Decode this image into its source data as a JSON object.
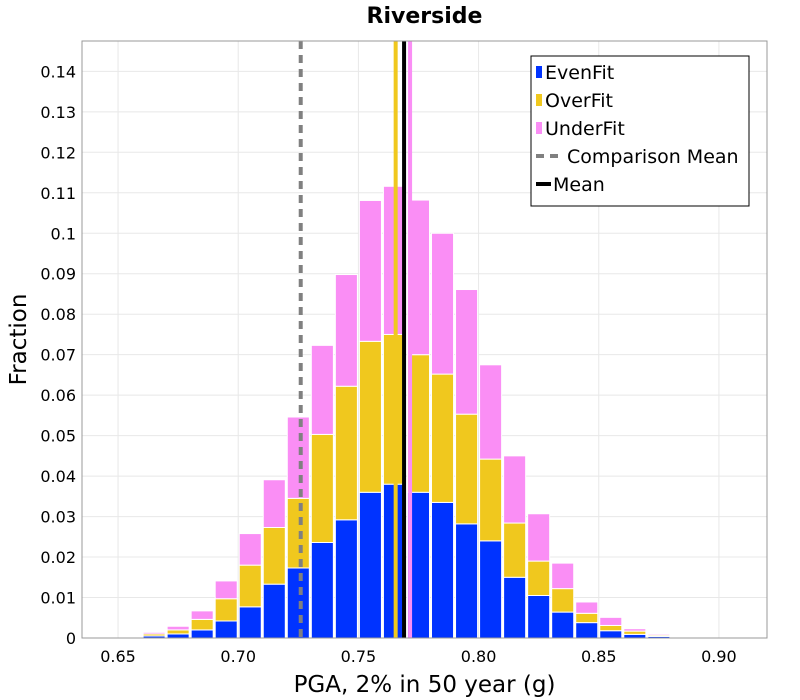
{
  "chart_data": {
    "type": "bar",
    "stacked": true,
    "title": "Riverside",
    "xlabel": "PGA, 2% in 50 year (g)",
    "ylabel": "Fraction",
    "xlim": [
      0.635,
      0.92
    ],
    "ylim": [
      0,
      0.1475
    ],
    "xticks": [
      0.65,
      0.7,
      0.75,
      0.8,
      0.85,
      0.9
    ],
    "xtick_labels": [
      "0.65",
      "0.70",
      "0.75",
      "0.80",
      "0.85",
      "0.90"
    ],
    "yticks": [
      0,
      0.01,
      0.02,
      0.03,
      0.04,
      0.05,
      0.06,
      0.07,
      0.08,
      0.09,
      0.1,
      0.11,
      0.12,
      0.13,
      0.14
    ],
    "ytick_labels": [
      "0",
      "0.01",
      "0.02",
      "0.03",
      "0.04",
      "0.05",
      "0.06",
      "0.07",
      "0.08",
      "0.09",
      "0.1",
      "0.11",
      "0.12",
      "0.13",
      "0.14"
    ],
    "bin_width": 0.01,
    "bin_centers": [
      0.645,
      0.655,
      0.665,
      0.675,
      0.685,
      0.695,
      0.705,
      0.715,
      0.725,
      0.735,
      0.745,
      0.755,
      0.765,
      0.775,
      0.785,
      0.795,
      0.805,
      0.815,
      0.825,
      0.835,
      0.845,
      0.855,
      0.865,
      0.875,
      0.885,
      0.895,
      0.905
    ],
    "series": [
      {
        "name": "EvenFit",
        "color": "#0033ff",
        "values": [
          0.0001,
          0.0002,
          0.0005,
          0.001,
          0.002,
          0.0042,
          0.0077,
          0.0133,
          0.0173,
          0.0236,
          0.0292,
          0.036,
          0.038,
          0.036,
          0.0335,
          0.0282,
          0.024,
          0.015,
          0.0105,
          0.0064,
          0.0038,
          0.0018,
          0.0009,
          0.0004,
          0.0002,
          0.0001,
          0.0
        ]
      },
      {
        "name": "OverFit",
        "color": "#f0c81e",
        "values": [
          0.0001,
          0.0002,
          0.0005,
          0.001,
          0.0026,
          0.0055,
          0.0103,
          0.014,
          0.0172,
          0.0267,
          0.033,
          0.0373,
          0.037,
          0.034,
          0.0317,
          0.0271,
          0.0202,
          0.0134,
          0.0085,
          0.0058,
          0.0023,
          0.0013,
          0.0008,
          0.0003,
          0.0002,
          0.0001,
          0.0
        ]
      },
      {
        "name": "UnderFit",
        "color": "#fa8ef5",
        "values": [
          0.0001,
          0.0002,
          0.0004,
          0.0009,
          0.0021,
          0.0044,
          0.0078,
          0.0118,
          0.0201,
          0.022,
          0.0276,
          0.0348,
          0.0366,
          0.0382,
          0.0348,
          0.0308,
          0.0233,
          0.0166,
          0.0117,
          0.0063,
          0.0028,
          0.002,
          0.0006,
          0.0003,
          0.0001,
          0.0001,
          0.0001
        ]
      }
    ],
    "lines": [
      {
        "name": "Comparison Mean",
        "x": 0.726,
        "color": "#808080",
        "style": "dashed"
      },
      {
        "name": "OverFit Mean",
        "x": 0.7655,
        "color": "#f0c81e",
        "style": "solid"
      },
      {
        "name": "UnderFit Mean",
        "x": 0.7715,
        "color": "#fa8ef5",
        "style": "solid"
      },
      {
        "name": "Mean",
        "x": 0.769,
        "color": "#000000",
        "style": "solid"
      }
    ],
    "legend": {
      "position": "top-right",
      "entries": [
        {
          "label": "EvenFit",
          "kind": "patch",
          "color": "#0033ff"
        },
        {
          "label": "OverFit",
          "kind": "patch",
          "color": "#f0c81e"
        },
        {
          "label": "UnderFit",
          "kind": "patch",
          "color": "#fa8ef5"
        },
        {
          "label": "Comparison Mean",
          "kind": "dashed-line",
          "color": "#808080"
        },
        {
          "label": "Mean",
          "kind": "line",
          "color": "#000000"
        }
      ]
    },
    "grid": true
  }
}
